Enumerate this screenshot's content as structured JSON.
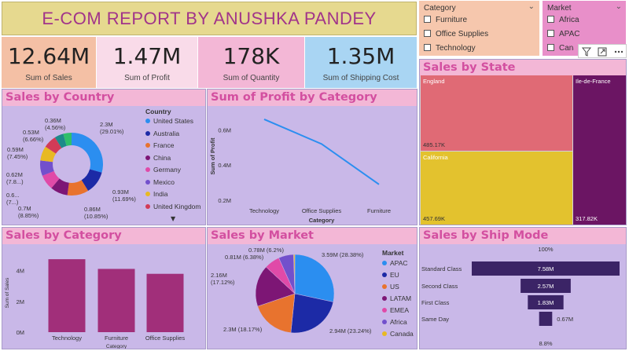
{
  "title": "E-COM REPORT BY ANUSHKA PANDEY",
  "kpis": [
    {
      "value": "12.64M",
      "label": "Sum of Sales",
      "bg": "#f4c0a5"
    },
    {
      "value": "1.47M",
      "label": "Sum of Profit",
      "bg": "#f9dbe9"
    },
    {
      "value": "178K",
      "label": "Sum of Quantity",
      "bg": "#f3b7d6"
    },
    {
      "value": "1.35M",
      "label": "Sum of Shipping Cost",
      "bg": "#a9d5f3"
    }
  ],
  "slicers": {
    "category": {
      "header": "Category",
      "items": [
        "Furniture",
        "Office Supplies",
        "Technology"
      ]
    },
    "market": {
      "header": "Market",
      "items": [
        "Africa",
        "APAC",
        "Canada"
      ]
    }
  },
  "visual_icons": [
    "filter-icon",
    "expand-icon",
    "more-options-icon"
  ],
  "panels": {
    "sales_by_country": "Sales by Country",
    "profit_by_category": "Sum of Profit by Category",
    "sales_by_state": "Sales by State",
    "sales_by_category": "Sales by Category",
    "sales_by_market": "Sales by Market",
    "sales_by_ship_mode": "Sales by Ship Mode"
  },
  "chart_data": [
    {
      "type": "pie",
      "title": "Sales by Country",
      "legend_title": "Country",
      "legend": [
        "United States",
        "Australia",
        "France",
        "China",
        "Germany",
        "Mexico",
        "India",
        "United Kingdom"
      ],
      "colors": [
        "#2b8ef0",
        "#1c2aa6",
        "#e8732e",
        "#7d1675",
        "#e04aa8",
        "#7250cc",
        "#e8b923",
        "#d23b57"
      ],
      "slices": [
        {
          "label": "2.3M (29.01%)",
          "percent": 29.01
        },
        {
          "label": "0.93M (11.69%)",
          "percent": 11.69
        },
        {
          "label": "0.86M (10.85%)",
          "percent": 10.85
        },
        {
          "label": "0.7M (8.85%)",
          "percent": 8.85
        },
        {
          "label": "0.6... (7...)",
          "percent": 7.8
        },
        {
          "label": "0.62M (7.8...)",
          "percent": 7.8
        },
        {
          "label": "0.59M (7.45%)",
          "percent": 7.45
        },
        {
          "label": "0.53M (6.66%)",
          "percent": 6.66
        },
        {
          "label": "0.36M (4.56%)",
          "percent": 4.56
        },
        {
          "label": "",
          "percent": 4.2
        }
      ],
      "slice_colors": [
        "#2b8ef0",
        "#1c2aa6",
        "#e8732e",
        "#7d1675",
        "#e04aa8",
        "#7250cc",
        "#e8b923",
        "#d23b57",
        "#1d8a8a",
        "#2fbf6a"
      ]
    },
    {
      "type": "line",
      "title": "Sum of Profit by Category",
      "categories": [
        "Technology",
        "Office Supplies",
        "Furniture"
      ],
      "values": [
        0.66,
        0.52,
        0.29
      ],
      "xlabel": "Category",
      "ylabel": "Sum of Profit",
      "yticks": [
        "0.6M",
        "0.4M",
        "0.2M"
      ],
      "ytick_values": [
        0.6,
        0.4,
        0.2
      ],
      "ylim": [
        0.2,
        0.7
      ],
      "color": "#2b8ef0"
    },
    {
      "type": "treemap",
      "title": "Sales by State",
      "items": [
        {
          "name": "England",
          "value": "485.17K",
          "color": "#e06a75"
        },
        {
          "name": "California",
          "value": "457.69K",
          "color": "#e3c22e"
        },
        {
          "name": "Ile-de-France",
          "value": "317.82K",
          "color": "#6b1563"
        }
      ]
    },
    {
      "type": "bar",
      "title": "Sales by Category",
      "categories": [
        "Technology",
        "Furniture",
        "Office Supplies"
      ],
      "values": [
        4.74,
        4.11,
        3.79
      ],
      "xlabel": "Category",
      "ylabel": "Sum of Sales",
      "yticks": [
        "4M",
        "2M",
        "0M"
      ],
      "ylim": [
        0,
        5
      ],
      "color": "#a12f7a"
    },
    {
      "type": "pie",
      "title": "Sales by Market",
      "legend_title": "Market",
      "legend": [
        "APAC",
        "EU",
        "US",
        "LATAM",
        "EMEA",
        "Africa",
        "Canada"
      ],
      "colors": [
        "#2b8ef0",
        "#1c2aa6",
        "#e8732e",
        "#7d1675",
        "#e04aa8",
        "#7250cc",
        "#e8b923"
      ],
      "slices": [
        {
          "label": "3.59M (28.38%)",
          "percent": 28.38
        },
        {
          "label": "2.94M (23.24%)",
          "percent": 23.24
        },
        {
          "label": "2.3M (18.17%)",
          "percent": 18.17
        },
        {
          "label": "2.16M (17.12%)",
          "percent": 17.12
        },
        {
          "label": "0.81M (6.38%)",
          "percent": 6.38
        },
        {
          "label": "0.78M (6.2%)",
          "percent": 6.2
        },
        {
          "label": "",
          "percent": 0.51
        }
      ]
    },
    {
      "type": "funnel",
      "title": "Sales by Ship Mode",
      "top_label": "100%",
      "bottom_label": "8.8%",
      "categories": [
        "Standard Class",
        "Second Class",
        "First Class",
        "Same Day"
      ],
      "values": [
        7.58,
        2.57,
        1.83,
        0.67
      ],
      "value_labels": [
        "7.58M",
        "2.57M",
        "1.83M",
        "0.67M"
      ],
      "color": "#3b2466"
    }
  ]
}
